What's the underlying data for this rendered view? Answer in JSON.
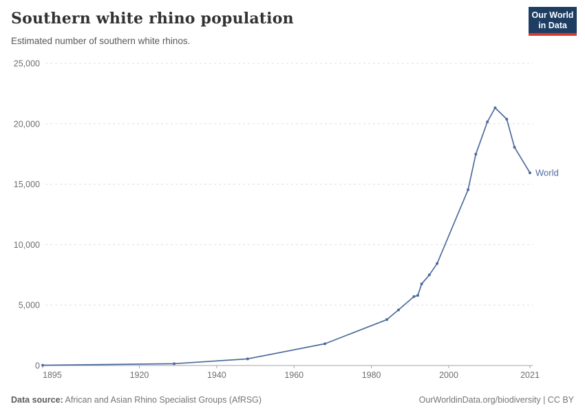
{
  "header": {
    "title": "Southern white rhino population",
    "subtitle": "Estimated number of southern white rhinos.",
    "logo": {
      "line1": "Our World",
      "line2": "in Data",
      "bg_color": "#1d3d63",
      "accent_color": "#d93a2b"
    }
  },
  "chart_data": {
    "type": "line",
    "title": "Southern white rhino population",
    "xlabel": "",
    "ylabel": "",
    "xlim": [
      1895,
      2021
    ],
    "ylim": [
      0,
      25000
    ],
    "grid": "horizontal-dashed",
    "legend_position": "end-of-line-label",
    "series": [
      {
        "name": "World",
        "color": "#4c6a9c",
        "x": [
          1895,
          1929,
          1948,
          1968,
          1984,
          1987,
          1991,
          1992,
          1993,
          1995,
          1997,
          2005,
          2007,
          2010,
          2012,
          2015,
          2017,
          2021
        ],
        "values": [
          20,
          150,
          550,
          1800,
          3800,
          4600,
          5700,
          5800,
          6750,
          7500,
          8440,
          14540,
          17480,
          20160,
          21320,
          20380,
          18060,
          15940
        ]
      }
    ],
    "xticks": [
      {
        "v": 1895,
        "label": "1895"
      },
      {
        "v": 1920,
        "label": "1920"
      },
      {
        "v": 1940,
        "label": "1940"
      },
      {
        "v": 1960,
        "label": "1960"
      },
      {
        "v": 1980,
        "label": "1980"
      },
      {
        "v": 2000,
        "label": "2000"
      },
      {
        "v": 2021,
        "label": "2021"
      }
    ],
    "yticks": [
      {
        "v": 0,
        "label": "0"
      },
      {
        "v": 5000,
        "label": "5,000"
      },
      {
        "v": 10000,
        "label": "10,000"
      },
      {
        "v": 15000,
        "label": "15,000"
      },
      {
        "v": 20000,
        "label": "20,000"
      },
      {
        "v": 25000,
        "label": "25,000"
      }
    ]
  },
  "footer": {
    "source_label": "Data source:",
    "source_text": " African and Asian Rhino Specialist Groups (AfRSG)",
    "credit": "OurWorldinData.org/biodiversity | CC BY"
  }
}
